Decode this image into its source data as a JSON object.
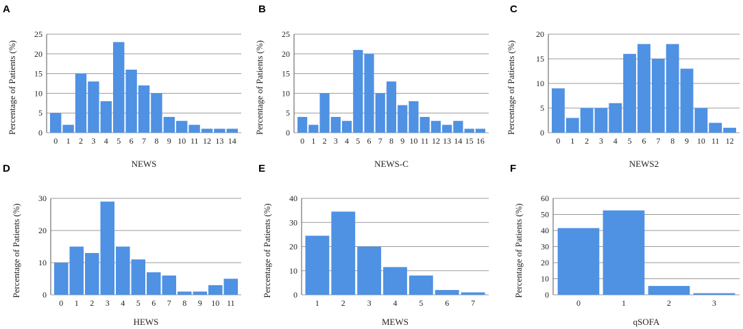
{
  "colors": {
    "bar": "#4f91e3",
    "grid": "#9a9a9a"
  },
  "chart_data": [
    {
      "panel": "A",
      "type": "bar",
      "xlabel": "NEWS",
      "ylabel": "Percentage of Patients (%)",
      "ylim": [
        0,
        25
      ],
      "yticks": [
        0,
        5,
        10,
        15,
        20,
        25
      ],
      "categories": [
        "0",
        "1",
        "2",
        "3",
        "4",
        "5",
        "6",
        "7",
        "8",
        "9",
        "10",
        "11",
        "12",
        "13",
        "14"
      ],
      "values": [
        5,
        2,
        15,
        13,
        8,
        23,
        16,
        12,
        10,
        4,
        3,
        2,
        1,
        1,
        1
      ]
    },
    {
      "panel": "B",
      "type": "bar",
      "xlabel": "NEWS-C",
      "ylabel": "Percentage of Patients (%)",
      "ylim": [
        0,
        25
      ],
      "yticks": [
        0,
        5,
        10,
        15,
        20,
        25
      ],
      "categories": [
        "0",
        "1",
        "2",
        "3",
        "4",
        "5",
        "6",
        "7",
        "8",
        "9",
        "10",
        "11",
        "12",
        "13",
        "14",
        "15",
        "16"
      ],
      "values": [
        4,
        2,
        10,
        4,
        3,
        21,
        20,
        10,
        13,
        7,
        8,
        4,
        3,
        2,
        3,
        1,
        1
      ]
    },
    {
      "panel": "C",
      "type": "bar",
      "xlabel": "NEWS2",
      "ylabel": "Percentage of Patients (%)",
      "ylim": [
        0,
        20
      ],
      "yticks": [
        0,
        5,
        10,
        15,
        20
      ],
      "categories": [
        "0",
        "1",
        "2",
        "3",
        "4",
        "5",
        "6",
        "7",
        "8",
        "9",
        "10",
        "11",
        "12"
      ],
      "values": [
        9,
        3,
        5,
        5,
        6,
        16,
        18,
        15,
        18,
        13,
        5,
        2,
        1
      ]
    },
    {
      "panel": "D",
      "type": "bar",
      "xlabel": "HEWS",
      "ylabel": "Percentage of Patients (%)",
      "ylim": [
        0,
        30
      ],
      "yticks": [
        0,
        10,
        20,
        30
      ],
      "categories": [
        "0",
        "1",
        "2",
        "3",
        "4",
        "5",
        "6",
        "7",
        "8",
        "9",
        "10",
        "11"
      ],
      "values": [
        10,
        15,
        13,
        29,
        15,
        11,
        7,
        6,
        1,
        1,
        3,
        5
      ]
    },
    {
      "panel": "E",
      "type": "bar",
      "xlabel": "MEWS",
      "ylabel": "Percentage of Patients (%)",
      "ylim": [
        0,
        40
      ],
      "yticks": [
        0,
        10,
        20,
        30,
        40
      ],
      "categories": [
        "1",
        "2",
        "3",
        "4",
        "5",
        "6",
        "7"
      ],
      "values": [
        24.5,
        34.5,
        20,
        11.5,
        8,
        2,
        1
      ]
    },
    {
      "panel": "F",
      "type": "bar",
      "xlabel": "qSOFA",
      "ylabel": "Percentage of Patients (%)",
      "ylim": [
        0,
        60
      ],
      "yticks": [
        0,
        10,
        20,
        30,
        40,
        50,
        60
      ],
      "categories": [
        "0",
        "1",
        "2",
        "3"
      ],
      "values": [
        41.5,
        52.5,
        5.5,
        1
      ]
    }
  ]
}
